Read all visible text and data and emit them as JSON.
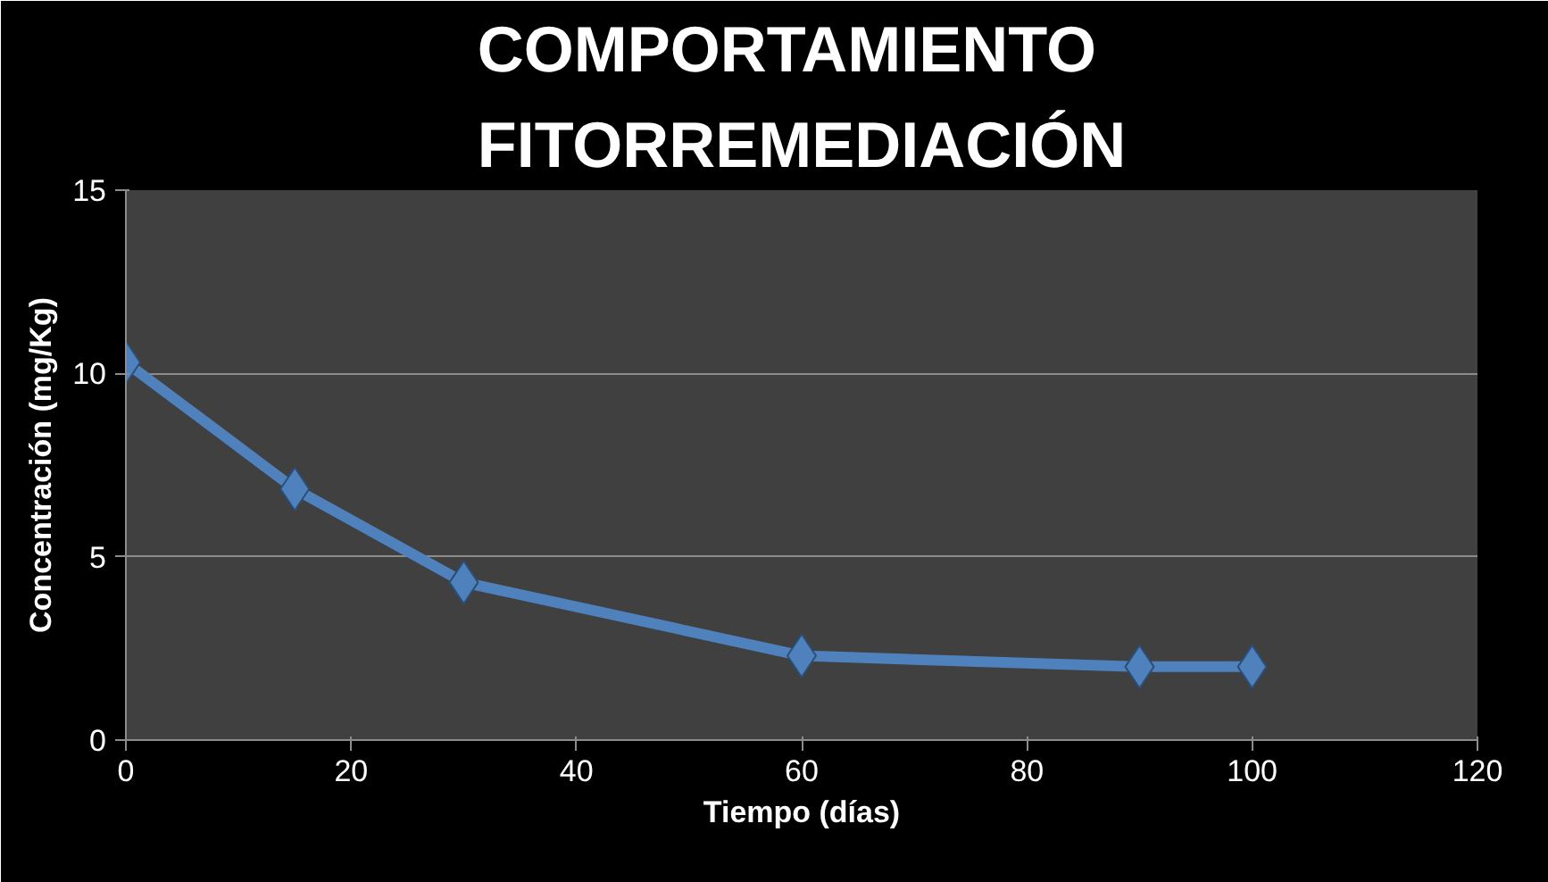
{
  "chart_data": {
    "type": "line",
    "title": "COMPORTAMIENTO\nFITORREMEDIACIÓN",
    "xlabel": "Tiempo (días)",
    "ylabel": "Concentración (mg/Kg)",
    "x": [
      0,
      15,
      30,
      60,
      90,
      100
    ],
    "series": [
      {
        "color": "#4f81bd",
        "values": [
          10.3,
          6.85,
          4.3,
          2.3,
          2.0,
          2.0
        ]
      }
    ],
    "xlim": [
      0,
      120
    ],
    "xticks": [
      0,
      20,
      40,
      60,
      80,
      100,
      120
    ],
    "ylim": [
      0,
      15
    ],
    "yticks": [
      0,
      5,
      10,
      15
    ],
    "grid": "y",
    "marker": "diamond",
    "line_style": "solid"
  }
}
